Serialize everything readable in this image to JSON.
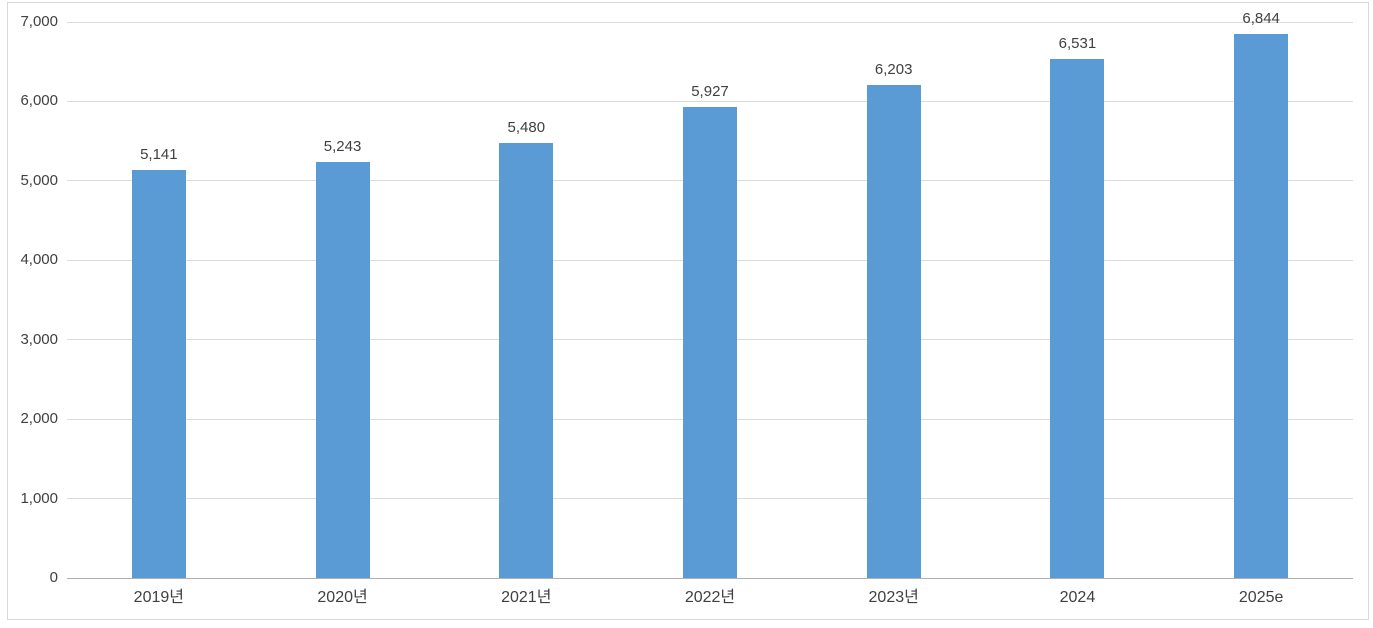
{
  "chart_data": {
    "type": "bar",
    "title": "",
    "xlabel": "",
    "ylabel": "",
    "categories": [
      "2019년",
      "2020년",
      "2021년",
      "2022년",
      "2023년",
      "2024",
      "2025e"
    ],
    "values": [
      5141,
      5243,
      5480,
      5927,
      6203,
      6531,
      6844
    ],
    "data_labels": [
      "5,141",
      "5,243",
      "5,480",
      "5,927",
      "6,203",
      "6,531",
      "6,844"
    ],
    "ylim": [
      0,
      7000
    ],
    "ytick_interval": 1000,
    "ytick_labels": [
      "0",
      "1,000",
      "2,000",
      "3,000",
      "4,000",
      "5,000",
      "6,000",
      "7,000"
    ],
    "grid": true,
    "legend": false,
    "colors": {
      "bar_fill": "#5B9BD5",
      "gridline": "#DCDCDC",
      "axis_line": "#B0B0B0",
      "text": "#404040",
      "frame_border": "#D9D9D9",
      "background": "#FFFFFF"
    }
  }
}
